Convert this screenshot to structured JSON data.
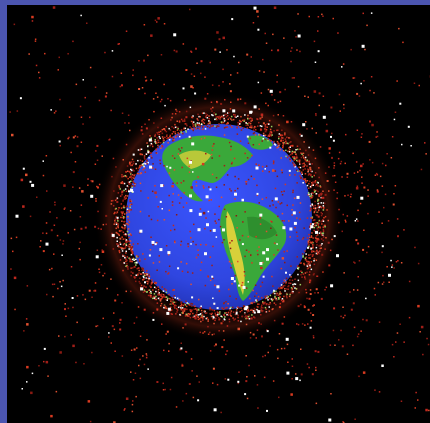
{
  "image": {
    "subject": "earth-with-orbital-debris",
    "colors": {
      "frame": "#4b55b0",
      "space": "#000000",
      "ocean": "#2f46e0",
      "land_green": "#3aa83a",
      "land_yellow": "#d8d03a",
      "debris_red": "#c0281e",
      "debris_white": "#ffffff"
    }
  }
}
